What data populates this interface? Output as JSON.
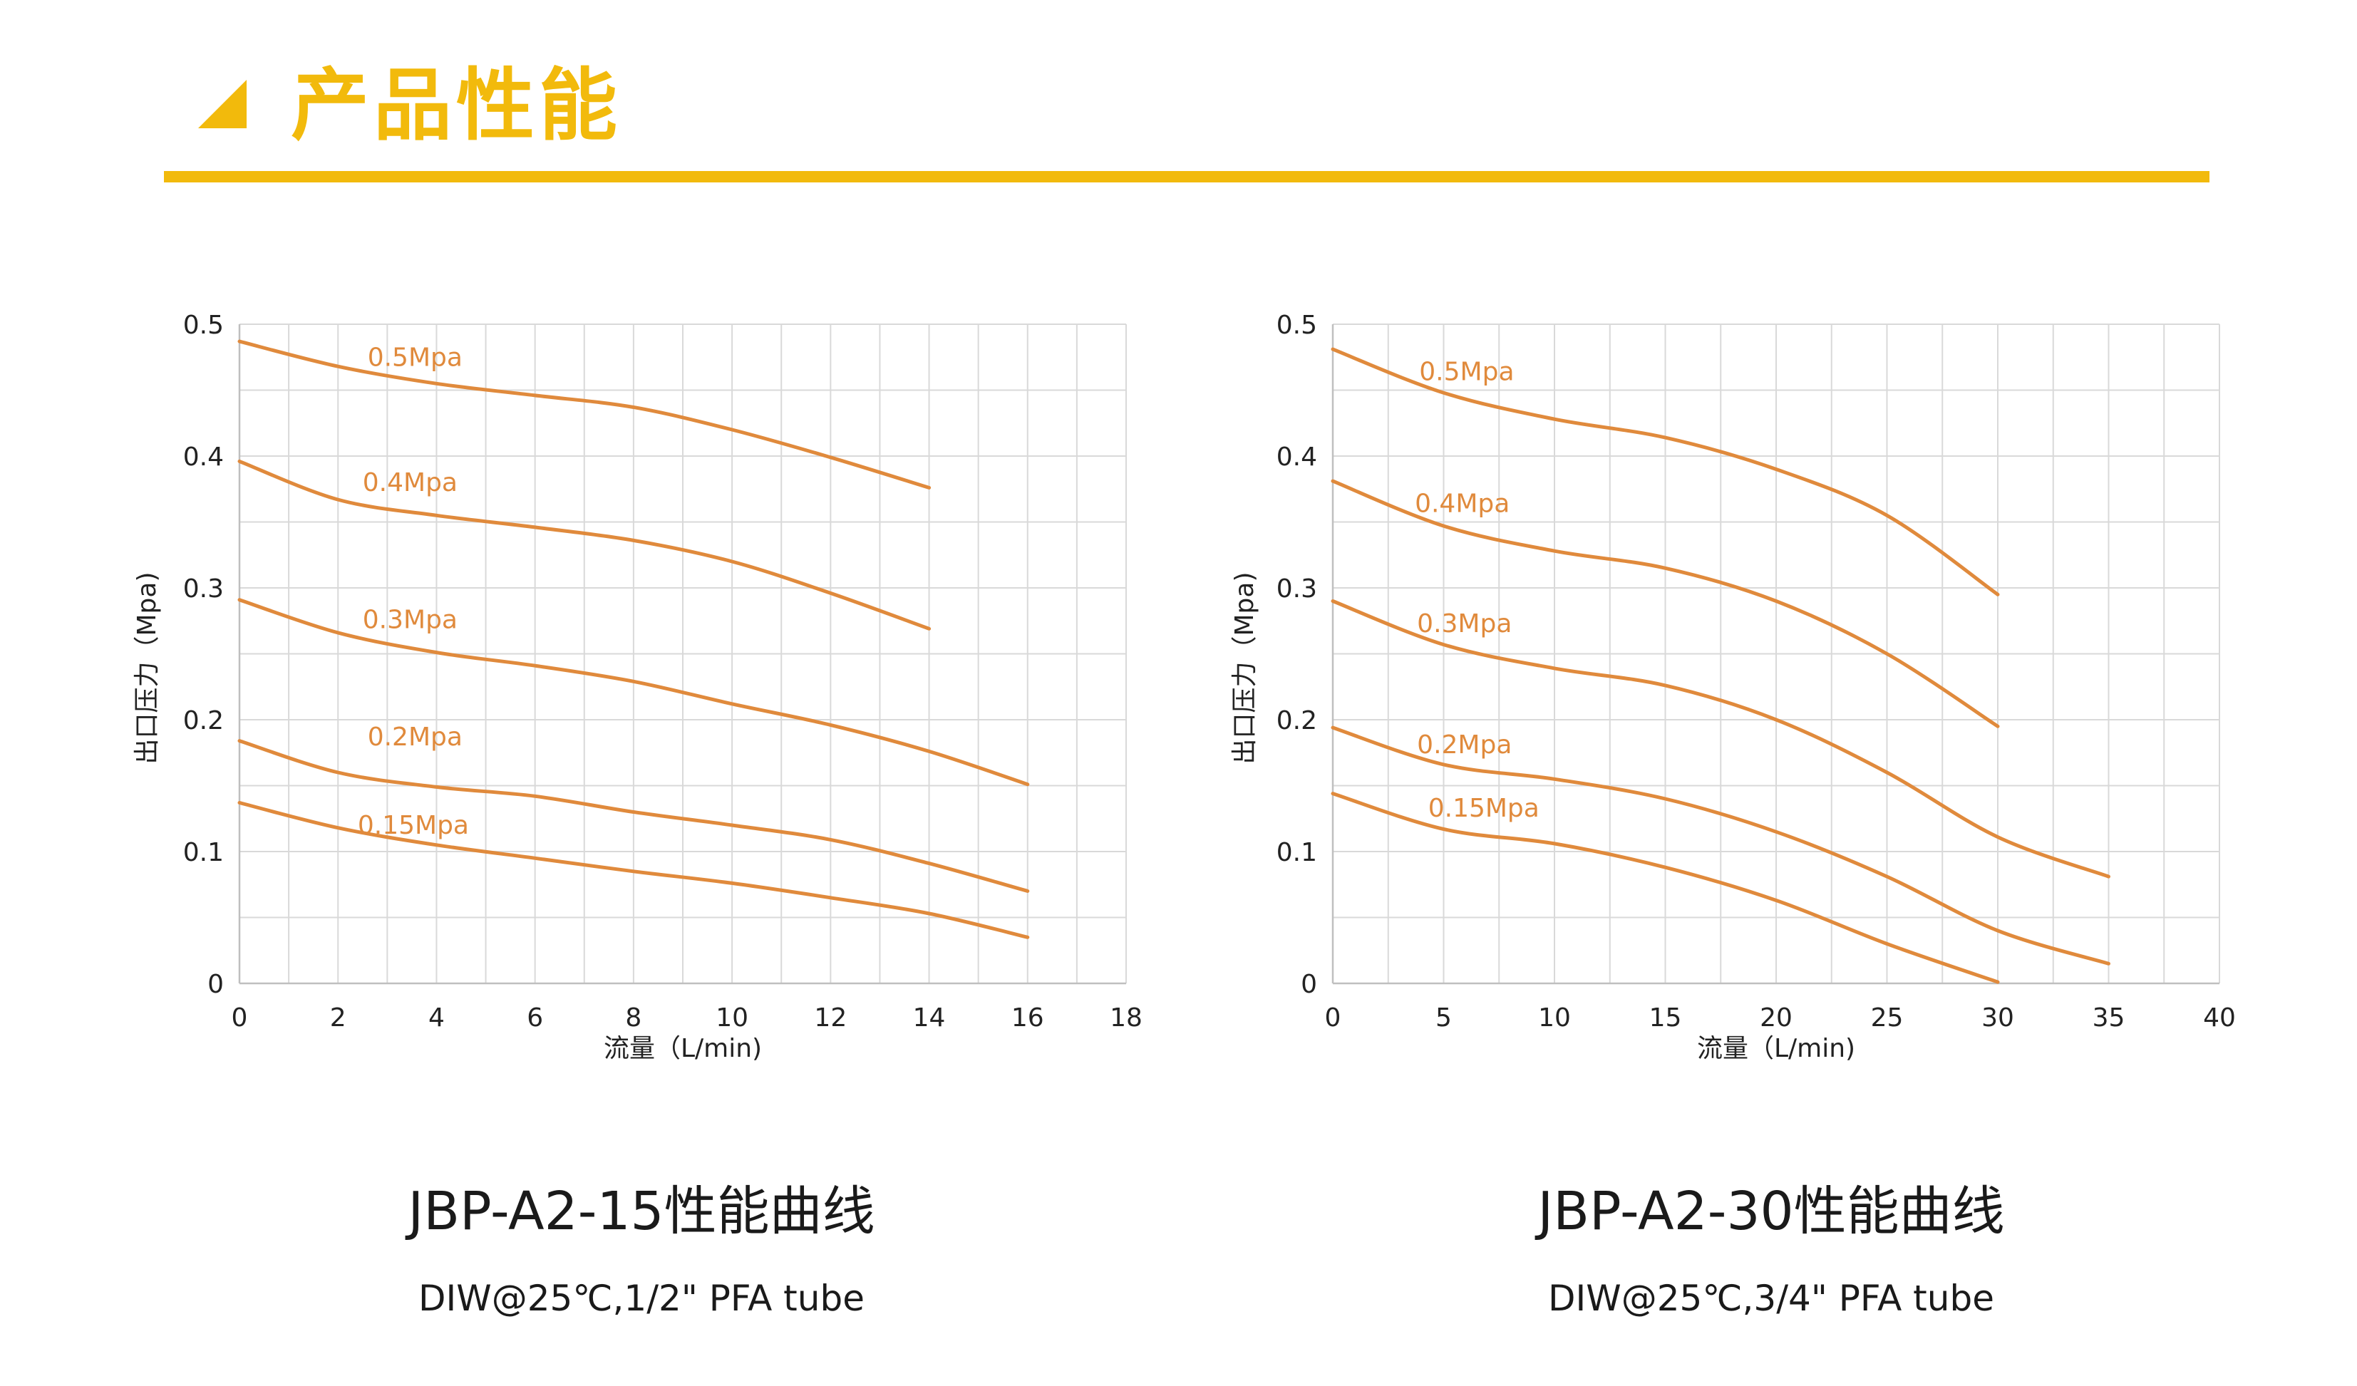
{
  "header": {
    "title": "产品性能"
  },
  "theme": {
    "accent": "#F2BA0C",
    "curve": "#E08A3C",
    "grid": "#D9D9D9"
  },
  "charts": [
    {
      "caption_title": "JBP-A2-15性能曲线",
      "caption_sub": "DIW@25℃,1/2\" PFA tube"
    },
    {
      "caption_title": "JBP-A2-30性能曲线",
      "caption_sub": "DIW@25℃,3/4\" PFA tube"
    }
  ],
  "chart_data": [
    {
      "type": "line",
      "title": "JBP-A2-15性能曲线",
      "xlabel": "流量（L/min)",
      "ylabel": "出口压力（Mpa)",
      "xlim": [
        0,
        18
      ],
      "ylim": [
        0,
        0.5
      ],
      "xticks": [
        0,
        2,
        4,
        6,
        8,
        10,
        12,
        14,
        16,
        18
      ],
      "yticks": [
        0,
        0.1,
        0.2,
        0.3,
        0.4,
        0.5
      ],
      "ytick_labels": [
        "0",
        "0.1",
        "0.2",
        "0.3",
        "0.4",
        "0.5"
      ],
      "grid": true,
      "series": [
        {
          "name": "0.5Mpa",
          "label_at": [
            2.6,
            0.475
          ],
          "x": [
            0,
            2,
            4,
            6,
            8,
            10,
            12,
            14
          ],
          "y": [
            0.487,
            0.468,
            0.455,
            0.446,
            0.437,
            0.42,
            0.399,
            0.376
          ]
        },
        {
          "name": "0.4Mpa",
          "label_at": [
            2.5,
            0.38
          ],
          "x": [
            0,
            2,
            4,
            6,
            8,
            10,
            12,
            14
          ],
          "y": [
            0.396,
            0.367,
            0.355,
            0.346,
            0.336,
            0.32,
            0.296,
            0.269
          ]
        },
        {
          "name": "0.3Mpa",
          "label_at": [
            2.5,
            0.276
          ],
          "x": [
            0,
            2,
            4,
            6,
            8,
            10,
            12,
            14,
            16
          ],
          "y": [
            0.291,
            0.266,
            0.251,
            0.241,
            0.229,
            0.212,
            0.196,
            0.176,
            0.151
          ]
        },
        {
          "name": "0.2Mpa",
          "label_at": [
            2.6,
            0.187
          ],
          "x": [
            0,
            2,
            4,
            6,
            8,
            10,
            12,
            14,
            16
          ],
          "y": [
            0.184,
            0.16,
            0.149,
            0.142,
            0.13,
            0.12,
            0.109,
            0.091,
            0.07
          ]
        },
        {
          "name": "0.15Mpa",
          "label_at": [
            2.4,
            0.12
          ],
          "x": [
            0,
            2,
            4,
            6,
            8,
            10,
            12,
            14,
            16
          ],
          "y": [
            0.137,
            0.118,
            0.105,
            0.095,
            0.085,
            0.076,
            0.065,
            0.053,
            0.035
          ]
        }
      ]
    },
    {
      "type": "line",
      "title": "JBP-A2-30性能曲线",
      "xlabel": "流量（L/min)",
      "ylabel": "出口压力（Mpa)",
      "xlim": [
        0,
        40
      ],
      "ylim": [
        0,
        0.5
      ],
      "xticks": [
        0,
        5,
        10,
        15,
        20,
        25,
        30,
        35,
        40
      ],
      "yticks": [
        0,
        0.1,
        0.2,
        0.3,
        0.4,
        0.5
      ],
      "ytick_labels": [
        "0",
        "0.1",
        "0.2",
        "0.3",
        "0.4",
        "0.5"
      ],
      "grid": true,
      "series": [
        {
          "name": "0.5Mpa",
          "label_at": [
            3.9,
            0.464
          ],
          "x": [
            0,
            5,
            10,
            15,
            20,
            25,
            30
          ],
          "y": [
            0.481,
            0.448,
            0.428,
            0.414,
            0.39,
            0.355,
            0.295
          ]
        },
        {
          "name": "0.4Mpa",
          "label_at": [
            3.7,
            0.364
          ],
          "x": [
            0,
            5,
            10,
            15,
            20,
            25,
            30
          ],
          "y": [
            0.381,
            0.347,
            0.328,
            0.315,
            0.29,
            0.25,
            0.195
          ]
        },
        {
          "name": "0.3Mpa",
          "label_at": [
            3.8,
            0.273
          ],
          "x": [
            0,
            5,
            10,
            15,
            20,
            25,
            30,
            35
          ],
          "y": [
            0.29,
            0.257,
            0.239,
            0.226,
            0.2,
            0.16,
            0.111,
            0.081
          ]
        },
        {
          "name": "0.2Mpa",
          "label_at": [
            3.8,
            0.181
          ],
          "x": [
            0,
            5,
            10,
            15,
            20,
            25,
            30,
            35
          ],
          "y": [
            0.194,
            0.166,
            0.155,
            0.14,
            0.115,
            0.081,
            0.04,
            0.015
          ]
        },
        {
          "name": "0.15Mpa",
          "label_at": [
            4.3,
            0.133
          ],
          "x": [
            0,
            5,
            10,
            15,
            20,
            25,
            30
          ],
          "y": [
            0.144,
            0.117,
            0.106,
            0.088,
            0.063,
            0.03,
            0.001
          ]
        }
      ]
    }
  ]
}
